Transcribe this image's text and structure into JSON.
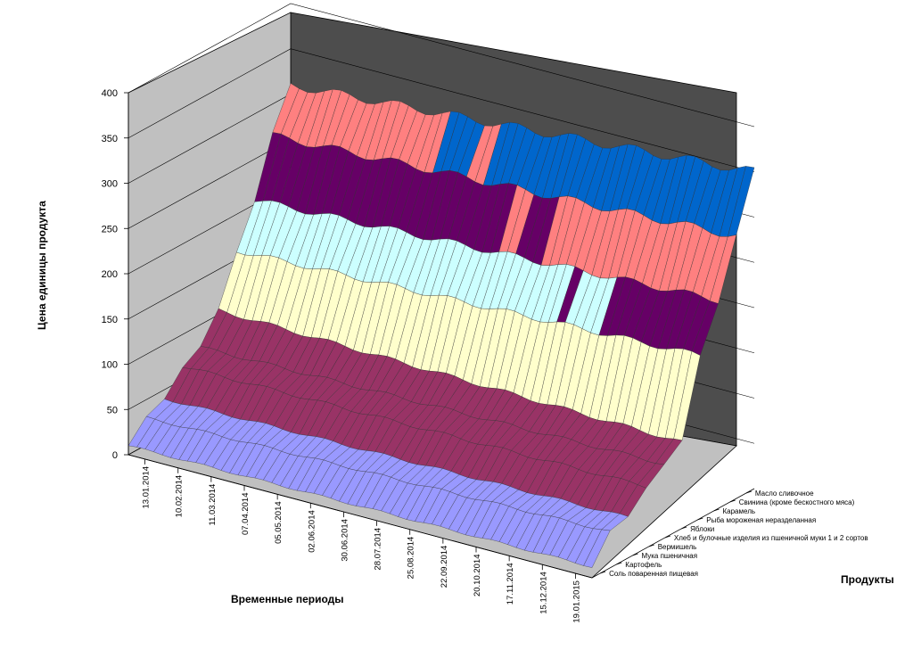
{
  "chart_data": {
    "type": "surface-3d",
    "title": "",
    "xlabel": "Временные периоды",
    "ylabel": "Цена единицы продукта",
    "zlabel": "Продукты",
    "zlim": [
      0,
      400
    ],
    "z_ticks": [
      0,
      50,
      100,
      150,
      200,
      250,
      300,
      350,
      400
    ],
    "date_ticks": [
      "13.01.2014",
      "10.02.2014",
      "11.03.2014",
      "07.04.2014",
      "05.05.2014",
      "02.06.2014",
      "30.06.2014",
      "28.07.2014",
      "25.08.2014",
      "22.09.2014",
      "20.10.2014",
      "17.11.2014",
      "15.12.2014",
      "19.01.2015"
    ],
    "products": [
      "Соль поваренная пищевая",
      "Картофель",
      "Мука пшеничная",
      "Вермишель",
      "Хлеб и булочные изделия из пшеничной  муки 1 и 2 сортов",
      "Яблоки",
      "Рыба мороженая неразделанная",
      "Карамель",
      "Свинина (кроме бескостного мяса)",
      "Масло сливочное"
    ],
    "series": [
      {
        "name": "Соль поваренная пищевая",
        "start": 10,
        "end": 12,
        "color": "#9999ff"
      },
      {
        "name": "Картофель",
        "start": 30,
        "end": 40,
        "color": "#9999ff"
      },
      {
        "name": "Мука пшеничная",
        "start": 40,
        "end": 45,
        "color": "#9999ff"
      },
      {
        "name": "Вермишель",
        "start": 65,
        "end": 68,
        "color": "#9999ff"
      },
      {
        "name": "Хлеб и булочные изделия из пшеничной  муки 1 и 2 сортов",
        "start": 75,
        "end": 82,
        "color": "#9999ff"
      },
      {
        "name": "Яблоки",
        "start": 105,
        "end": 95,
        "color": "#993366"
      },
      {
        "name": "Рыба мороженая неразделанная",
        "start": 160,
        "end": 180,
        "color": "#ffffcc"
      },
      {
        "name": "Карамель",
        "start": 205,
        "end": 230,
        "color": "#ccffff"
      },
      {
        "name": "Свинина (кроме бескостного мяса)",
        "start": 265,
        "end": 290,
        "color": "#660066"
      },
      {
        "name": "Масло сливочное",
        "start": 310,
        "end": 350,
        "color": "#ff8080"
      }
    ],
    "band_colors": [
      "#9999ff",
      "#993366",
      "#ffffcc",
      "#ccffff",
      "#660066",
      "#ff8080",
      "#0066cc",
      "#ccccff"
    ]
  }
}
